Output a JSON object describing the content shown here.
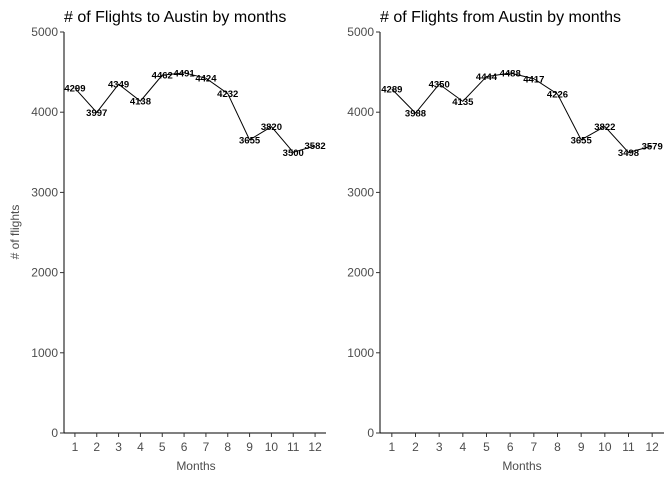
{
  "chart_data": [
    {
      "type": "line",
      "title": "# of Flights to Austin by months",
      "xlabel": "Months",
      "ylabel": "# of flights",
      "x": [
        1,
        2,
        3,
        4,
        5,
        6,
        7,
        8,
        9,
        10,
        11,
        12
      ],
      "x_tick_labels": [
        "1",
        "2",
        "3",
        "4",
        "5",
        "6",
        "7",
        "8",
        "9",
        "10",
        "11",
        "12"
      ],
      "y": [
        4299,
        3997,
        4349,
        4138,
        4462,
        4491,
        4424,
        4232,
        3655,
        3820,
        3500,
        3582
      ],
      "data_labels": [
        "4299",
        "3997",
        "4349",
        "4138",
        "4462",
        "4491",
        "4424",
        "4232",
        "3655",
        "3820",
        "3500",
        "3582"
      ],
      "y_ticks": [
        0,
        1000,
        2000,
        3000,
        4000,
        5000
      ],
      "y_tick_labels": [
        "0",
        "1000",
        "2000",
        "3000",
        "4000",
        "5000"
      ],
      "xlim": [
        0.5,
        12.5
      ],
      "ylim": [
        0,
        5000
      ],
      "grid": false,
      "legend": "none"
    },
    {
      "type": "line",
      "title": "# of Flights from Austin by months",
      "xlabel": "Months",
      "ylabel": "",
      "x": [
        1,
        2,
        3,
        4,
        5,
        6,
        7,
        8,
        9,
        10,
        11,
        12
      ],
      "x_tick_labels": [
        "1",
        "2",
        "3",
        "4",
        "5",
        "6",
        "7",
        "8",
        "9",
        "10",
        "11",
        "12"
      ],
      "y": [
        4289,
        3988,
        4350,
        4135,
        4444,
        4488,
        4417,
        4226,
        3655,
        3822,
        3498,
        3579
      ],
      "data_labels": [
        "4289",
        "3988",
        "4350",
        "4135",
        "4444",
        "4488",
        "4417",
        "4226",
        "3655",
        "3822",
        "3498",
        "3579"
      ],
      "y_ticks": [
        0,
        1000,
        2000,
        3000,
        4000,
        5000
      ],
      "y_tick_labels": [
        "0",
        "1000",
        "2000",
        "3000",
        "4000",
        "5000"
      ],
      "xlim": [
        0.5,
        12.5
      ],
      "ylim": [
        0,
        5000
      ],
      "grid": false,
      "legend": "none"
    }
  ]
}
